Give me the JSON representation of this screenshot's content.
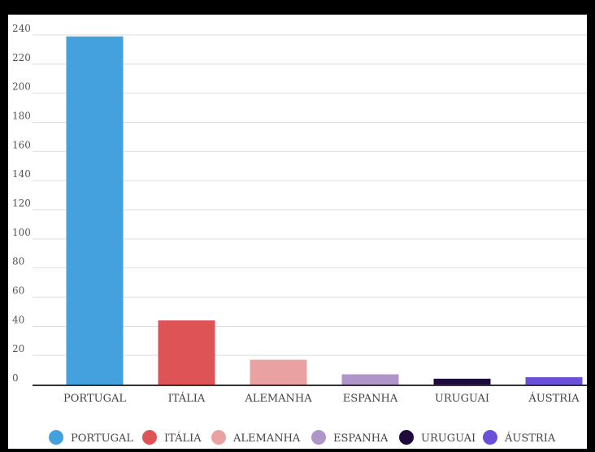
{
  "chart_data": {
    "type": "bar",
    "title": "",
    "xlabel": "",
    "ylabel": "",
    "categories": [
      "PORTUGAL",
      "ITÁLIA",
      "ALEMANHA",
      "ESPANHA",
      "URUGUAI",
      "ÁUSTRIA"
    ],
    "values": [
      239,
      44,
      17,
      7,
      4,
      5
    ],
    "colors": [
      "#45a1dd",
      "#de5355",
      "#eaa1a2",
      "#b095c9",
      "#1f0b3b",
      "#6b4fd9"
    ],
    "ylim": [
      0,
      240
    ],
    "yticks": [
      0,
      20,
      40,
      60,
      80,
      100,
      120,
      140,
      160,
      180,
      200,
      220,
      240
    ],
    "grid": true,
    "legend_position": "bottom"
  }
}
